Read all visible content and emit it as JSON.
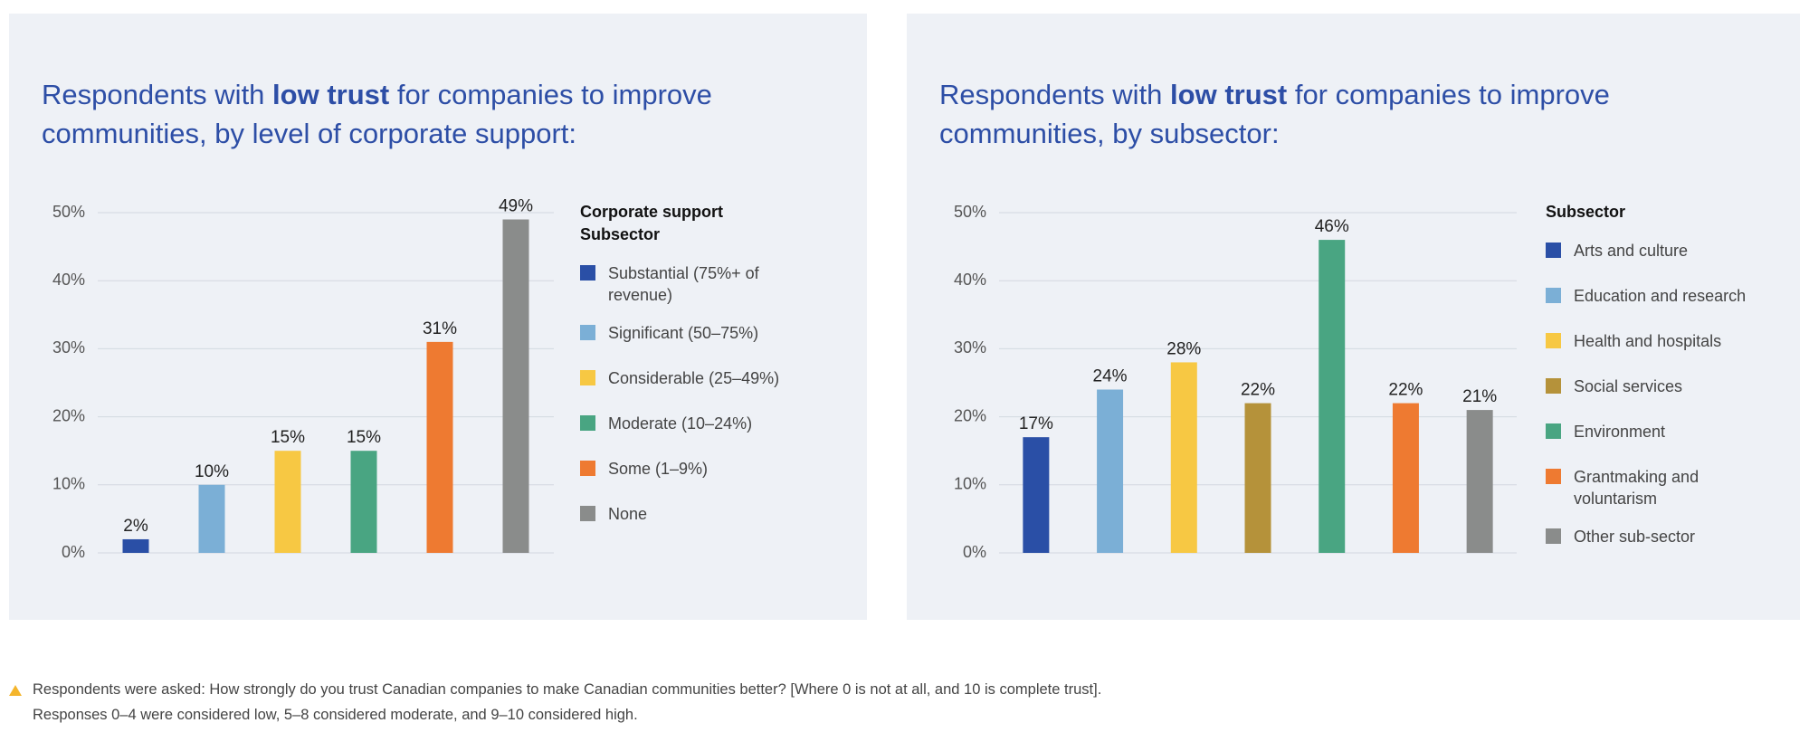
{
  "chart_data": [
    {
      "type": "bar",
      "title_parts": [
        "Respondents with ",
        "low trust",
        " for companies to improve communities, by level of corporate support:"
      ],
      "legend_title": "Corporate support Subsector",
      "categories": [
        "Substantial (75%+ of revenue)",
        "Significant (50–75%)",
        "Considerable (25–49%)",
        "Moderate (10–24%)",
        "Some (1–9%)",
        "None"
      ],
      "values": [
        2,
        10,
        15,
        15,
        31,
        49
      ],
      "value_labels": [
        "2%",
        "10%",
        "15%",
        "15%",
        "31%",
        "49%"
      ],
      "colors": [
        "#2a4fa6",
        "#7bafd6",
        "#f7c843",
        "#49a582",
        "#ee7a31",
        "#8a8c8b"
      ],
      "ylim": [
        0,
        50
      ],
      "yticks": [
        {
          "value": 0,
          "label": "0%"
        },
        {
          "value": 10,
          "label": "10%"
        },
        {
          "value": 20,
          "label": "20%"
        },
        {
          "value": 30,
          "label": "30%"
        },
        {
          "value": 40,
          "label": "40%"
        },
        {
          "value": 50,
          "label": "50%"
        }
      ],
      "grid": true
    },
    {
      "type": "bar",
      "title_parts": [
        "Respondents with ",
        "low trust",
        " for companies to improve communities, by subsector:"
      ],
      "legend_title": "Subsector",
      "categories": [
        "Arts and culture",
        "Education and research",
        "Health and hospitals",
        "Social services",
        "Environment",
        "Grantmaking and voluntarism",
        "Other sub-sector"
      ],
      "values": [
        17,
        24,
        28,
        22,
        46,
        22,
        21
      ],
      "value_labels": [
        "17%",
        "24%",
        "28%",
        "22%",
        "46%",
        "22%",
        "21%"
      ],
      "colors": [
        "#2a4fa6",
        "#7bafd6",
        "#f7c843",
        "#b5923a",
        "#49a582",
        "#ee7a31",
        "#8a8c8b"
      ],
      "ylim": [
        0,
        50
      ],
      "yticks": [
        {
          "value": 0,
          "label": "0%"
        },
        {
          "value": 10,
          "label": "10%"
        },
        {
          "value": 20,
          "label": "20%"
        },
        {
          "value": 30,
          "label": "30%"
        },
        {
          "value": 40,
          "label": "40%"
        },
        {
          "value": 50,
          "label": "50%"
        }
      ],
      "grid": true
    }
  ],
  "footnote": [
    "Respondents were asked: How strongly do you trust Canadian companies to make Canadian communities better? [Where 0 is not at all, and 10 is complete trust].",
    "Responses 0–4 were considered low, 5–8 considered moderate, and 9–10 considered high."
  ]
}
